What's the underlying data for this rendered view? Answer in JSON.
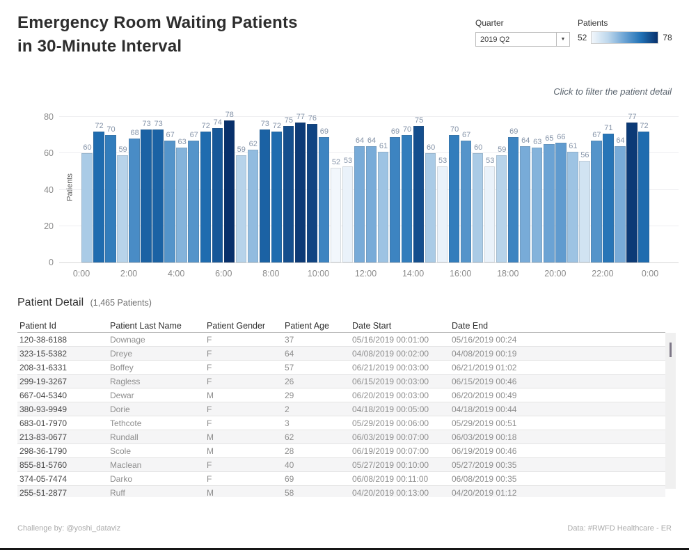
{
  "header": {
    "title": "Emergency Room Waiting Patients\nin 30-Minute Interval",
    "hint": "Click to filter the patient detail"
  },
  "filters": {
    "quarter": {
      "label": "Quarter",
      "value": "2019 Q2"
    },
    "legend": {
      "label": "Patients",
      "min": "52",
      "max": "78"
    }
  },
  "chart_data": {
    "type": "bar",
    "title": "",
    "xlabel": "",
    "ylabel": "Patients",
    "ylim": [
      0,
      80
    ],
    "yticks": [
      0,
      20,
      40,
      60,
      80
    ],
    "grid": true,
    "x_tick_labels": [
      "0:00",
      "2:00",
      "4:00",
      "6:00",
      "8:00",
      "10:00",
      "12:00",
      "14:00",
      "16:00",
      "18:00",
      "20:00",
      "22:00",
      "0:00"
    ],
    "categories": [
      "0:00",
      "0:30",
      "1:00",
      "1:30",
      "2:00",
      "2:30",
      "3:00",
      "3:30",
      "4:00",
      "4:30",
      "5:00",
      "5:30",
      "6:00",
      "6:30",
      "7:00",
      "7:30",
      "8:00",
      "8:30",
      "9:00",
      "9:30",
      "10:00",
      "10:30",
      "11:00",
      "11:30",
      "12:00",
      "12:30",
      "13:00",
      "13:30",
      "14:00",
      "14:30",
      "15:00",
      "15:30",
      "16:00",
      "16:30",
      "17:00",
      "17:30",
      "18:00",
      "18:30",
      "19:00",
      "19:30",
      "20:00",
      "20:30",
      "21:00",
      "21:30",
      "22:00",
      "22:30",
      "23:00",
      "23:30"
    ],
    "values": [
      60,
      72,
      70,
      59,
      68,
      73,
      73,
      67,
      63,
      67,
      72,
      74,
      78,
      59,
      62,
      73,
      72,
      75,
      77,
      76,
      69,
      52,
      53,
      64,
      64,
      61,
      69,
      70,
      75,
      60,
      53,
      70,
      67,
      60,
      53,
      59,
      69,
      64,
      63,
      65,
      66,
      61,
      56,
      67,
      71,
      64,
      77,
      72
    ],
    "color_scale": {
      "min_value": 52,
      "max_value": 78,
      "stops": [
        "#f2f7fc",
        "#bdd7ec",
        "#6ba3d4",
        "#2171b5",
        "#08306b"
      ]
    },
    "bar_label_color": "#8493a8"
  },
  "table": {
    "title": "Patient Detail",
    "subtitle": "(1,465 Patients)",
    "columns": [
      "Patient Id",
      "Patient Last Name",
      "Patient Gender",
      "Patient Age",
      "Date Start",
      "Date End"
    ],
    "rows": [
      [
        "120-38-6188",
        "Downage",
        "F",
        "37",
        "05/16/2019 00:01:00",
        "05/16/2019 00:24"
      ],
      [
        "323-15-5382",
        "Dreye",
        "F",
        "64",
        "04/08/2019 00:02:00",
        "04/08/2019 00:19"
      ],
      [
        "208-31-6331",
        "Boffey",
        "F",
        "57",
        "06/21/2019 00:03:00",
        "06/21/2019 01:02"
      ],
      [
        "299-19-3267",
        "Ragless",
        "F",
        "26",
        "06/15/2019 00:03:00",
        "06/15/2019 00:46"
      ],
      [
        "667-04-5340",
        "Dewar",
        "M",
        "29",
        "06/20/2019 00:03:00",
        "06/20/2019 00:49"
      ],
      [
        "380-93-9949",
        "Dorie",
        "F",
        "2",
        "04/18/2019 00:05:00",
        "04/18/2019 00:44"
      ],
      [
        "683-01-7970",
        "Tethcote",
        "F",
        "3",
        "05/29/2019 00:06:00",
        "05/29/2019 00:51"
      ],
      [
        "213-83-0677",
        "Rundall",
        "M",
        "62",
        "06/03/2019 00:07:00",
        "06/03/2019 00:18"
      ],
      [
        "298-36-1790",
        "Scole",
        "M",
        "28",
        "06/19/2019 00:07:00",
        "06/19/2019 00:46"
      ],
      [
        "855-81-5760",
        "Maclean",
        "F",
        "40",
        "05/27/2019 00:10:00",
        "05/27/2019 00:35"
      ],
      [
        "374-05-7474",
        "Darko",
        "F",
        "69",
        "06/08/2019 00:11:00",
        "06/08/2019 00:35"
      ],
      [
        "255-51-2877",
        "Ruff",
        "M",
        "58",
        "04/20/2019 00:13:00",
        "04/20/2019 01:12"
      ]
    ]
  },
  "footer": {
    "left": "Challenge by: @yoshi_dataviz",
    "right": "Data: #RWFD Healthcare - ER"
  }
}
